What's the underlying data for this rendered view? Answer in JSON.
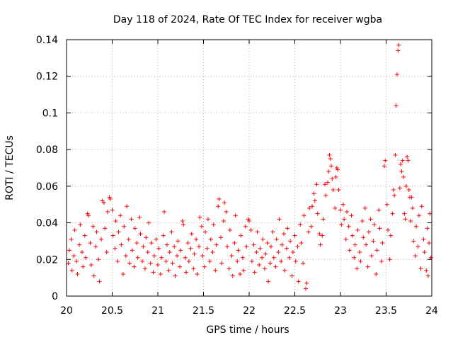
{
  "chart_data": {
    "type": "scatter",
    "title": "Day 118 of 2024, Rate Of TEC Index for receiver wgba",
    "xlabel": "GPS time / hours",
    "ylabel": "ROTI / TECUs",
    "xlim": [
      20,
      24
    ],
    "ylim": [
      0,
      0.14
    ],
    "xticks": [
      20,
      20.5,
      21,
      21.5,
      22,
      22.5,
      23,
      23.5,
      24
    ],
    "xtick_labels": [
      "20",
      "20.5",
      "21",
      "21.5",
      "22",
      "22.5",
      "23",
      "23.5",
      "24"
    ],
    "yticks": [
      0,
      0.02,
      0.04,
      0.06,
      0.08,
      0.1,
      0.12,
      0.14
    ],
    "ytick_labels": [
      "0",
      "0.02",
      "0.04",
      "0.06",
      "0.08",
      "0.1",
      "0.12",
      "0.14"
    ],
    "grid": true,
    "marker": "+",
    "color": "#ff0000",
    "series": [
      {
        "name": "ROTI",
        "points": [
          [
            20.02,
            0.018
          ],
          [
            20.03,
            0.025
          ],
          [
            20.05,
            0.031
          ],
          [
            20.06,
            0.014
          ],
          [
            20.08,
            0.022
          ],
          [
            20.09,
            0.036
          ],
          [
            20.11,
            0.019
          ],
          [
            20.12,
            0.012
          ],
          [
            20.14,
            0.028
          ],
          [
            20.15,
            0.039
          ],
          [
            20.17,
            0.024
          ],
          [
            20.18,
            0.016
          ],
          [
            20.2,
            0.033
          ],
          [
            20.21,
            0.021
          ],
          [
            20.23,
            0.045
          ],
          [
            20.24,
            0.044
          ],
          [
            20.26,
            0.029
          ],
          [
            20.27,
            0.017
          ],
          [
            20.29,
            0.038
          ],
          [
            20.3,
            0.011
          ],
          [
            20.32,
            0.027
          ],
          [
            20.33,
            0.035
          ],
          [
            20.35,
            0.02
          ],
          [
            20.36,
            0.008
          ],
          [
            20.38,
            0.031
          ],
          [
            20.39,
            0.052
          ],
          [
            20.41,
            0.051
          ],
          [
            20.42,
            0.037
          ],
          [
            20.44,
            0.024
          ],
          [
            20.45,
            0.046
          ],
          [
            20.47,
            0.054
          ],
          [
            20.48,
            0.053
          ],
          [
            20.5,
            0.047
          ],
          [
            20.51,
            0.033
          ],
          [
            20.53,
            0.026
          ],
          [
            20.54,
            0.041
          ],
          [
            20.56,
            0.019
          ],
          [
            20.57,
            0.035
          ],
          [
            20.59,
            0.044
          ],
          [
            20.6,
            0.028
          ],
          [
            20.62,
            0.012
          ],
          [
            20.63,
            0.038
          ],
          [
            20.65,
            0.022
          ],
          [
            20.66,
            0.049
          ],
          [
            20.68,
            0.031
          ],
          [
            20.69,
            0.018
          ],
          [
            20.71,
            0.042
          ],
          [
            20.72,
            0.025
          ],
          [
            20.74,
            0.016
          ],
          [
            20.75,
            0.037
          ],
          [
            20.77,
            0.029
          ],
          [
            20.78,
            0.021
          ],
          [
            20.8,
            0.043
          ],
          [
            20.81,
            0.034
          ],
          [
            20.83,
            0.019
          ],
          [
            20.84,
            0.027
          ],
          [
            20.86,
            0.015
          ],
          [
            20.87,
            0.032
          ],
          [
            20.89,
            0.024
          ],
          [
            20.9,
            0.04
          ],
          [
            20.92,
            0.018
          ],
          [
            20.93,
            0.029
          ],
          [
            20.95,
            0.013
          ],
          [
            20.96,
            0.022
          ],
          [
            20.98,
            0.031
          ],
          [
            21.0,
            0.017
          ],
          [
            21.01,
            0.026
          ],
          [
            21.03,
            0.012
          ],
          [
            21.04,
            0.021
          ],
          [
            21.06,
            0.033
          ],
          [
            21.07,
            0.046
          ],
          [
            21.09,
            0.019
          ],
          [
            21.1,
            0.028
          ],
          [
            21.12,
            0.014
          ],
          [
            21.13,
            0.024
          ],
          [
            21.15,
            0.035
          ],
          [
            21.16,
            0.018
          ],
          [
            21.18,
            0.027
          ],
          [
            21.19,
            0.011
          ],
          [
            21.21,
            0.022
          ],
          [
            21.22,
            0.03
          ],
          [
            21.24,
            0.016
          ],
          [
            21.25,
            0.025
          ],
          [
            21.27,
            0.041
          ],
          [
            21.28,
            0.039
          ],
          [
            21.3,
            0.021
          ],
          [
            21.31,
            0.013
          ],
          [
            21.33,
            0.029
          ],
          [
            21.34,
            0.019
          ],
          [
            21.36,
            0.026
          ],
          [
            21.37,
            0.034
          ],
          [
            21.39,
            0.015
          ],
          [
            21.4,
            0.023
          ],
          [
            21.42,
            0.031
          ],
          [
            21.43,
            0.012
          ],
          [
            21.45,
            0.027
          ],
          [
            21.46,
            0.043
          ],
          [
            21.48,
            0.038
          ],
          [
            21.49,
            0.022
          ],
          [
            21.51,
            0.016
          ],
          [
            21.52,
            0.035
          ],
          [
            21.54,
            0.026
          ],
          [
            21.55,
            0.042
          ],
          [
            21.57,
            0.019
          ],
          [
            21.58,
            0.031
          ],
          [
            21.6,
            0.024
          ],
          [
            21.61,
            0.039
          ],
          [
            21.63,
            0.014
          ],
          [
            21.64,
            0.028
          ],
          [
            21.66,
            0.049
          ],
          [
            21.67,
            0.053
          ],
          [
            21.69,
            0.032
          ],
          [
            21.7,
            0.018
          ],
          [
            21.72,
            0.041
          ],
          [
            21.73,
            0.051
          ],
          [
            21.75,
            0.046
          ],
          [
            21.76,
            0.027
          ],
          [
            21.78,
            0.015
          ],
          [
            21.79,
            0.036
          ],
          [
            21.81,
            0.022
          ],
          [
            21.82,
            0.011
          ],
          [
            21.84,
            0.029
          ],
          [
            21.85,
            0.044
          ],
          [
            21.87,
            0.019
          ],
          [
            21.88,
            0.025
          ],
          [
            21.9,
            0.012
          ],
          [
            21.91,
            0.033
          ],
          [
            21.93,
            0.021
          ],
          [
            21.94,
            0.014
          ],
          [
            21.96,
            0.038
          ],
          [
            21.97,
            0.027
          ],
          [
            21.99,
            0.042
          ],
          [
            22.0,
            0.041
          ],
          [
            22.02,
            0.036
          ],
          [
            22.03,
            0.019
          ],
          [
            22.05,
            0.028
          ],
          [
            22.06,
            0.013
          ],
          [
            22.08,
            0.024
          ],
          [
            22.09,
            0.035
          ],
          [
            22.11,
            0.017
          ],
          [
            22.12,
            0.026
          ],
          [
            22.14,
            0.021
          ],
          [
            22.15,
            0.031
          ],
          [
            22.17,
            0.015
          ],
          [
            22.18,
            0.023
          ],
          [
            22.2,
            0.029
          ],
          [
            22.21,
            0.008
          ],
          [
            22.23,
            0.018
          ],
          [
            22.24,
            0.027
          ],
          [
            22.26,
            0.035
          ],
          [
            22.27,
            0.021
          ],
          [
            22.29,
            0.016
          ],
          [
            22.3,
            0.031
          ],
          [
            22.32,
            0.024
          ],
          [
            22.33,
            0.042
          ],
          [
            22.35,
            0.019
          ],
          [
            22.36,
            0.028
          ],
          [
            22.38,
            0.034
          ],
          [
            22.39,
            0.014
          ],
          [
            22.41,
            0.026
          ],
          [
            22.42,
            0.037
          ],
          [
            22.44,
            0.021
          ],
          [
            22.45,
            0.03
          ],
          [
            22.47,
            0.011
          ],
          [
            22.48,
            0.024
          ],
          [
            22.5,
            0.033
          ],
          [
            22.51,
            0.019
          ],
          [
            22.53,
            0.027
          ],
          [
            22.54,
            0.008
          ],
          [
            22.56,
            0.039
          ],
          [
            22.57,
            0.029
          ],
          [
            22.59,
            0.018
          ],
          [
            22.6,
            0.044
          ],
          [
            22.62,
            0.004
          ],
          [
            22.63,
            0.007
          ],
          [
            22.65,
            0.035
          ],
          [
            22.66,
            0.048
          ],
          [
            22.68,
            0.038
          ],
          [
            22.69,
            0.049
          ],
          [
            22.71,
            0.056
          ],
          [
            22.72,
            0.052
          ],
          [
            22.74,
            0.061
          ],
          [
            22.75,
            0.045
          ],
          [
            22.77,
            0.034
          ],
          [
            22.78,
            0.028
          ],
          [
            22.8,
            0.033
          ],
          [
            22.81,
            0.042
          ],
          [
            22.83,
            0.061
          ],
          [
            22.84,
            0.055
          ],
          [
            22.86,
            0.062
          ],
          [
            22.87,
            0.068
          ],
          [
            22.88,
            0.077
          ],
          [
            22.89,
            0.075
          ],
          [
            22.9,
            0.071
          ],
          [
            22.91,
            0.064
          ],
          [
            22.92,
            0.058
          ],
          [
            22.94,
            0.048
          ],
          [
            22.95,
            0.065
          ],
          [
            22.96,
            0.07
          ],
          [
            22.97,
            0.069
          ],
          [
            22.98,
            0.058
          ],
          [
            23.0,
            0.047
          ],
          [
            23.01,
            0.039
          ],
          [
            23.03,
            0.05
          ],
          [
            23.04,
            0.042
          ],
          [
            23.06,
            0.031
          ],
          [
            23.07,
            0.046
          ],
          [
            23.09,
            0.038
          ],
          [
            23.1,
            0.025
          ],
          [
            23.12,
            0.044
          ],
          [
            23.13,
            0.033
          ],
          [
            23.15,
            0.021
          ],
          [
            23.16,
            0.028
          ],
          [
            23.18,
            0.015
          ],
          [
            23.19,
            0.036
          ],
          [
            23.21,
            0.024
          ],
          [
            23.22,
            0.019
          ],
          [
            23.24,
            0.041
          ],
          [
            23.25,
            0.032
          ],
          [
            23.27,
            0.048
          ],
          [
            23.28,
            0.028
          ],
          [
            23.3,
            0.016
          ],
          [
            23.31,
            0.035
          ],
          [
            23.33,
            0.042
          ],
          [
            23.34,
            0.022
          ],
          [
            23.36,
            0.03
          ],
          [
            23.37,
            0.039
          ],
          [
            23.39,
            0.012
          ],
          [
            23.4,
            0.025
          ],
          [
            23.42,
            0.047
          ],
          [
            23.43,
            0.037
          ],
          [
            23.45,
            0.019
          ],
          [
            23.46,
            0.029
          ],
          [
            23.48,
            0.071
          ],
          [
            23.49,
            0.074
          ],
          [
            23.51,
            0.05
          ],
          [
            23.52,
            0.036
          ],
          [
            23.54,
            0.02
          ],
          [
            23.55,
            0.033
          ],
          [
            23.57,
            0.045
          ],
          [
            23.58,
            0.058
          ],
          [
            23.59,
            0.055
          ],
          [
            23.6,
            0.077
          ],
          [
            23.61,
            0.104
          ],
          [
            23.62,
            0.121
          ],
          [
            23.63,
            0.134
          ],
          [
            23.64,
            0.137
          ],
          [
            23.65,
            0.059
          ],
          [
            23.66,
            0.072
          ],
          [
            23.67,
            0.068
          ],
          [
            23.68,
            0.074
          ],
          [
            23.69,
            0.065
          ],
          [
            23.7,
            0.045
          ],
          [
            23.71,
            0.042
          ],
          [
            23.72,
            0.06
          ],
          [
            23.73,
            0.076
          ],
          [
            23.74,
            0.074
          ],
          [
            23.75,
            0.058
          ],
          [
            23.76,
            0.054
          ],
          [
            23.77,
            0.041
          ],
          [
            23.78,
            0.054
          ],
          [
            23.79,
            0.048
          ],
          [
            23.8,
            0.03
          ],
          [
            23.82,
            0.022
          ],
          [
            23.83,
            0.038
          ],
          [
            23.85,
            0.027
          ],
          [
            23.86,
            0.044
          ],
          [
            23.88,
            0.015
          ],
          [
            23.89,
            0.049
          ],
          [
            23.91,
            0.031
          ],
          [
            23.92,
            0.024
          ],
          [
            23.94,
            0.014
          ],
          [
            23.95,
            0.037
          ],
          [
            23.96,
            0.011
          ],
          [
            23.97,
            0.029
          ],
          [
            23.98,
            0.045
          ],
          [
            23.99,
            0.021
          ]
        ]
      }
    ]
  }
}
